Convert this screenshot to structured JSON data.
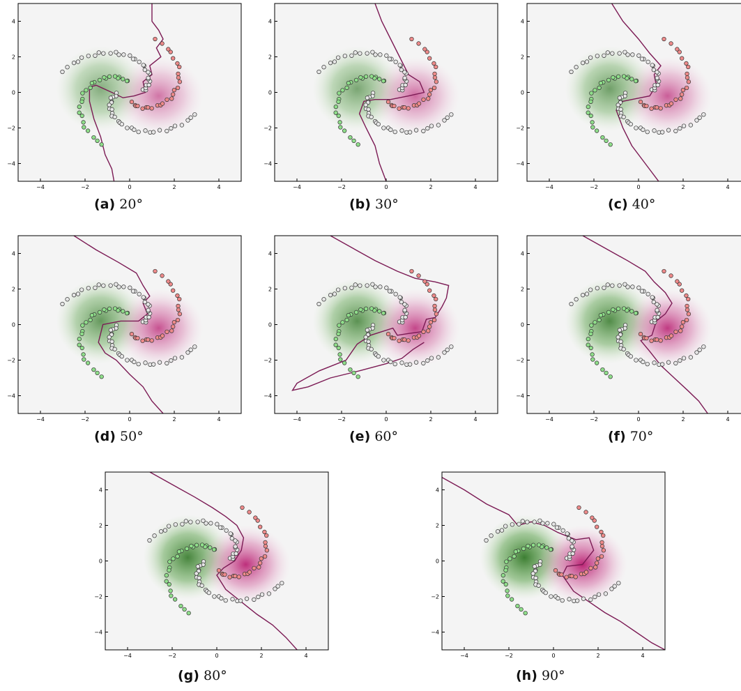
{
  "figure": {
    "caption_degree_suffix": "°"
  },
  "colors": {
    "green_strong": "#1e6a12",
    "magenta_strong": "#b0005e",
    "background": "#f4f4f4",
    "boundary": "#7b1a54",
    "class_green_point": "#8fde8a",
    "class_red_point": "#ee8a8a",
    "unlabeled_point": "#e6e6e6"
  },
  "chart_data": [
    {
      "type": "scatter",
      "label": "(a)",
      "angle": "20",
      "xlim": [
        -5,
        5
      ],
      "ylim": [
        -5,
        5
      ],
      "xticks": [
        "−4",
        "−2",
        "0",
        "2",
        "4"
      ],
      "yticks": [
        "−4",
        "−2",
        "0",
        "2",
        "4"
      ],
      "series": [],
      "boundary": [
        [
          1,
          5
        ],
        [
          1,
          4
        ],
        [
          1.3,
          3.5
        ],
        [
          1.5,
          3
        ],
        [
          1.2,
          2.5
        ],
        [
          1.4,
          2
        ],
        [
          0.9,
          1.5
        ],
        [
          1,
          1
        ],
        [
          0.6,
          0.6
        ],
        [
          0.7,
          0
        ],
        [
          0.2,
          -0.2
        ],
        [
          -0.3,
          -0.3
        ],
        [
          -0.8,
          0
        ],
        [
          -1.5,
          0.4
        ],
        [
          -1.8,
          0.3
        ],
        [
          -1.8,
          -0.5
        ],
        [
          -1.6,
          -1.5
        ],
        [
          -1.3,
          -2.5
        ],
        [
          -1.1,
          -3.5
        ],
        [
          -0.8,
          -4.3
        ],
        [
          -0.7,
          -5
        ]
      ]
    },
    {
      "type": "scatter",
      "label": "(b)",
      "angle": "30",
      "xlim": [
        -5,
        5
      ],
      "ylim": [
        -5,
        5
      ],
      "xticks": [
        "−4",
        "−2",
        "0",
        "2",
        "4"
      ],
      "yticks": [
        "−4",
        "−2",
        "0",
        "2",
        "4"
      ],
      "series": [],
      "boundary": [
        [
          -0.5,
          5
        ],
        [
          -0.2,
          4
        ],
        [
          0.2,
          3
        ],
        [
          0.6,
          2
        ],
        [
          1,
          1
        ],
        [
          1.5,
          0.6
        ],
        [
          1.7,
          0
        ],
        [
          1,
          -0.2
        ],
        [
          0.2,
          -0.4
        ],
        [
          -0.5,
          -0.4
        ],
        [
          -1,
          -0.5
        ],
        [
          -1.2,
          -1.2
        ],
        [
          -0.9,
          -2
        ],
        [
          -0.5,
          -3
        ],
        [
          -0.3,
          -4
        ],
        [
          0,
          -5
        ]
      ]
    },
    {
      "type": "scatter",
      "label": "(c)",
      "angle": "40",
      "xlim": [
        -5,
        5
      ],
      "ylim": [
        -5,
        5
      ],
      "xticks": [
        "−4",
        "−2",
        "0",
        "2",
        "4"
      ],
      "yticks": [
        "−4",
        "−2",
        "0",
        "2",
        "4"
      ],
      "series": [],
      "boundary": [
        [
          -1.2,
          5
        ],
        [
          -0.7,
          4
        ],
        [
          0,
          3
        ],
        [
          0.5,
          2.2
        ],
        [
          1,
          1.5
        ],
        [
          0.7,
          1
        ],
        [
          0.8,
          0.4
        ],
        [
          0.5,
          -0.2
        ],
        [
          -0.3,
          -0.4
        ],
        [
          -0.7,
          -0.5
        ],
        [
          -1,
          -1
        ],
        [
          -0.7,
          -2
        ],
        [
          -0.3,
          -3
        ],
        [
          0.3,
          -4
        ],
        [
          0.9,
          -5
        ]
      ]
    },
    {
      "type": "scatter",
      "label": "(d)",
      "angle": "50",
      "xlim": [
        -5,
        5
      ],
      "ylim": [
        -5,
        5
      ],
      "xticks": [
        "−4",
        "−2",
        "0",
        "2",
        "4"
      ],
      "yticks": [
        "−4",
        "−2",
        "0",
        "2",
        "4"
      ],
      "series": [],
      "boundary": [
        [
          -2.5,
          5
        ],
        [
          -1.5,
          4.2
        ],
        [
          -0.5,
          3.5
        ],
        [
          0.3,
          2.9
        ],
        [
          0.6,
          2.2
        ],
        [
          0.9,
          1.6
        ],
        [
          0.6,
          1.2
        ],
        [
          0.8,
          0.6
        ],
        [
          0.4,
          0.2
        ],
        [
          -0.4,
          0.2
        ],
        [
          -1.2,
          0
        ],
        [
          -1.4,
          -1
        ],
        [
          -1.1,
          -1.6
        ],
        [
          -0.6,
          -2
        ],
        [
          0,
          -2.8
        ],
        [
          0.6,
          -3.5
        ],
        [
          1,
          -4.3
        ],
        [
          1.5,
          -5
        ]
      ]
    },
    {
      "type": "scatter",
      "label": "(e)",
      "angle": "60",
      "xlim": [
        -5,
        5
      ],
      "ylim": [
        -5,
        5
      ],
      "xticks": [
        "−4",
        "−2",
        "0",
        "2",
        "4"
      ],
      "yticks": [
        "−4",
        "−2",
        "0",
        "2",
        "4"
      ],
      "series": [],
      "boundary": [
        [
          -2.5,
          5
        ],
        [
          -1.5,
          4.3
        ],
        [
          -0.5,
          3.6
        ],
        [
          0.5,
          3
        ],
        [
          1.3,
          2.6
        ],
        [
          2.2,
          2.4
        ],
        [
          2.8,
          2.2
        ],
        [
          2.7,
          1.5
        ],
        [
          2.5,
          1
        ],
        [
          2.2,
          0.4
        ],
        [
          1.8,
          0.3
        ],
        [
          1.6,
          -0.4
        ],
        [
          1,
          -0.5
        ],
        [
          0.5,
          -0.6
        ],
        [
          0.3,
          -0.2
        ],
        [
          -0.7,
          -0.6
        ],
        [
          -1.3,
          -1.1
        ],
        [
          -1.8,
          -2
        ],
        [
          -3,
          -2.6
        ],
        [
          -4,
          -3.3
        ],
        [
          -4.2,
          -3.7
        ],
        [
          -3.5,
          -3.5
        ],
        [
          -2.5,
          -3
        ],
        [
          -1.2,
          -2.6
        ],
        [
          0,
          -2.2
        ],
        [
          0.7,
          -1.9
        ],
        [
          1.2,
          -1.4
        ],
        [
          1.7,
          -1
        ]
      ]
    },
    {
      "type": "scatter",
      "label": "(f)",
      "angle": "70",
      "xlim": [
        -5,
        5
      ],
      "ylim": [
        -5,
        5
      ],
      "xticks": [
        "−4",
        "−2",
        "0",
        "2",
        "4"
      ],
      "yticks": [
        "−4",
        "−2",
        "0",
        "2",
        "4"
      ],
      "series": [],
      "boundary": [
        [
          -2.5,
          5
        ],
        [
          -1.5,
          4.3
        ],
        [
          -0.5,
          3.6
        ],
        [
          0.3,
          3
        ],
        [
          0.7,
          2.4
        ],
        [
          1.2,
          1.8
        ],
        [
          1.5,
          1.2
        ],
        [
          1.2,
          0.6
        ],
        [
          0.8,
          0.2
        ],
        [
          0.6,
          -0.6
        ],
        [
          0.1,
          -0.9
        ],
        [
          0.5,
          -1.5
        ],
        [
          1,
          -2.3
        ],
        [
          1.6,
          -3
        ],
        [
          2.2,
          -3.7
        ],
        [
          2.7,
          -4.3
        ],
        [
          3.1,
          -5
        ]
      ]
    },
    {
      "type": "scatter",
      "label": "(g)",
      "angle": "80",
      "xlim": [
        -5,
        5
      ],
      "ylim": [
        -5,
        5
      ],
      "xticks": [
        "−4",
        "−2",
        "0",
        "2",
        "4"
      ],
      "yticks": [
        "−4",
        "−2",
        "0",
        "2",
        "4"
      ],
      "series": [],
      "boundary": [
        [
          -3,
          5
        ],
        [
          -2,
          4.3
        ],
        [
          -1,
          3.6
        ],
        [
          -0.2,
          3
        ],
        [
          0.4,
          2.5
        ],
        [
          0.9,
          2
        ],
        [
          1.2,
          1.3
        ],
        [
          1.1,
          0.6
        ],
        [
          0.8,
          0
        ],
        [
          0.3,
          -0.4
        ],
        [
          0,
          -0.8
        ],
        [
          0.4,
          -1.6
        ],
        [
          1.1,
          -2.3
        ],
        [
          1.8,
          -3
        ],
        [
          2.5,
          -3.6
        ],
        [
          3.1,
          -4.3
        ],
        [
          3.6,
          -5
        ]
      ]
    },
    {
      "type": "scatter",
      "label": "(h)",
      "angle": "90",
      "xlim": [
        -5,
        5
      ],
      "ylim": [
        -5,
        5
      ],
      "xticks": [
        "−4",
        "−2",
        "0",
        "2",
        "4"
      ],
      "yticks": [
        "−4",
        "−2",
        "0",
        "2",
        "4"
      ],
      "series": [],
      "boundary": [
        [
          -5,
          4.7
        ],
        [
          -4,
          4
        ],
        [
          -3,
          3.2
        ],
        [
          -2,
          2.6
        ],
        [
          -1.6,
          2
        ],
        [
          -1,
          2.2
        ],
        [
          -0.4,
          2
        ],
        [
          0.2,
          1.6
        ],
        [
          1,
          1.2
        ],
        [
          1.6,
          1.3
        ],
        [
          1.8,
          0.6
        ],
        [
          1.3,
          -0.2
        ],
        [
          0.6,
          -0.3
        ],
        [
          0.4,
          -0.8
        ],
        [
          0.9,
          -1.7
        ],
        [
          1.6,
          -2.3
        ],
        [
          2.3,
          -2.9
        ],
        [
          3,
          -3.4
        ],
        [
          3.7,
          -4
        ],
        [
          4.4,
          -4.6
        ],
        [
          5,
          -5
        ]
      ]
    }
  ]
}
